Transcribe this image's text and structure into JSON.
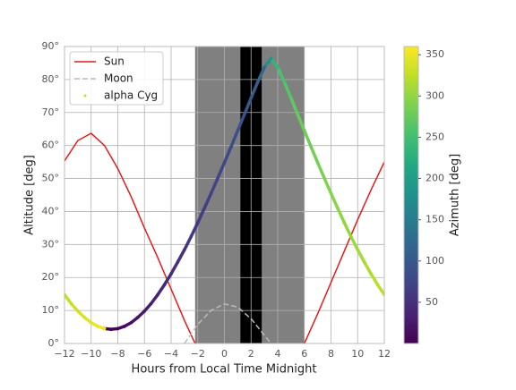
{
  "chart_data": {
    "type": "line",
    "xlabel": "Hours from Local Time Midnight",
    "ylabel": "Altitude [deg]",
    "xlim": [
      -12,
      12
    ],
    "ylim": [
      0,
      90
    ],
    "xticks": [
      {
        "value": -12,
        "label": "−12"
      },
      {
        "value": -10,
        "label": "−10"
      },
      {
        "value": -8,
        "label": "−8"
      },
      {
        "value": -6,
        "label": "−6"
      },
      {
        "value": -4,
        "label": "−4"
      },
      {
        "value": -2,
        "label": "−2"
      },
      0,
      2,
      4,
      6,
      8,
      10,
      12
    ],
    "yticks": [
      {
        "value": 0,
        "label": "0°"
      },
      {
        "value": 10,
        "label": "10°"
      },
      {
        "value": 20,
        "label": "20°"
      },
      {
        "value": 30,
        "label": "30°"
      },
      {
        "value": 40,
        "label": "40°"
      },
      {
        "value": 50,
        "label": "50°"
      },
      {
        "value": 60,
        "label": "60°"
      },
      {
        "value": 70,
        "label": "70°"
      },
      {
        "value": 80,
        "label": "80°"
      },
      {
        "value": 90,
        "label": "90°"
      }
    ],
    "grid": true,
    "legend": "upper left",
    "shading": [
      {
        "start": -2.2,
        "end": 6.0,
        "color": "#808080"
      },
      {
        "start": 1.2,
        "end": 2.8,
        "color": "#000000"
      }
    ],
    "series": [
      {
        "name": "Sun",
        "kind": "line",
        "color": "#e41a1c",
        "dash": false,
        "x": [
          -12,
          -11,
          -10,
          -9,
          -8,
          -7,
          -6,
          -5,
          -4,
          -3,
          -2.2,
          0,
          6,
          7,
          8,
          9,
          10,
          11,
          12
        ],
        "values": [
          55.3,
          61.5,
          63.7,
          60,
          53,
          44.5,
          35,
          26,
          16.5,
          7,
          0,
          null,
          0,
          9,
          18.5,
          28,
          37.5,
          46.5,
          55
        ]
      },
      {
        "name": "Moon",
        "kind": "line",
        "color": "#bbbbbb",
        "dash": true,
        "x": [
          -3,
          -2,
          -1,
          0,
          1,
          2,
          3,
          3.5
        ],
        "values": [
          0,
          5.8,
          10,
          12,
          11,
          7.5,
          2.5,
          0
        ]
      },
      {
        "name": "alpha Cyg",
        "kind": "scatter",
        "color": "#c2df23",
        "x": [
          -12,
          -11.5,
          -11,
          -10.5,
          -10,
          -9.5,
          -9,
          -8.5,
          -8,
          -7.5,
          -7,
          -6.5,
          -6,
          -5.5,
          -5,
          -4.5,
          -4,
          -3.5,
          -3,
          -2.5,
          -2,
          -1.5,
          -1,
          -0.5,
          0,
          0.5,
          1,
          1.5,
          2,
          2.5,
          3,
          3.5,
          4,
          4.5,
          5,
          5.5,
          6,
          6.5,
          7,
          7.5,
          8,
          8.5,
          9,
          9.5,
          10,
          10.5,
          11,
          11.5,
          12
        ],
        "values": [
          14.8,
          12.1,
          9.8,
          7.9,
          6.3,
          5.2,
          4.5,
          4.3,
          4.5,
          5.2,
          6.3,
          7.9,
          9.8,
          12.1,
          14.8,
          17.8,
          21.1,
          24.7,
          28.4,
          32.4,
          36.6,
          41.0,
          45.5,
          50.1,
          54.8,
          59.6,
          64.5,
          69.4,
          74.4,
          79.2,
          83.7,
          86.4,
          83.7,
          79.2,
          74.4,
          69.4,
          64.5,
          59.6,
          54.8,
          50.1,
          45.5,
          41.0,
          36.6,
          32.4,
          28.4,
          24.7,
          21.1,
          17.8,
          14.8
        ],
        "azimuth": [
          324.7,
          329.4,
          334.3,
          339.2,
          344.3,
          349.4,
          354.6,
          0,
          5.4,
          10.6,
          15.7,
          20.8,
          25.7,
          30.6,
          35.3,
          39.8,
          44.2,
          48.4,
          52.5,
          56.5,
          60.3,
          64.2,
          68.0,
          71.8,
          75.6,
          79.6,
          84.0,
          88.9,
          95.2,
          104.4,
          123.3,
          180,
          236.7,
          255.6,
          264.8,
          271.1,
          276.0,
          280.4,
          284.4,
          288.2,
          292.0,
          295.8,
          299.7,
          303.5,
          307.5,
          311.6,
          315.8,
          320.2,
          324.7
        ]
      }
    ],
    "colorbar": {
      "label": "Azimuth [deg]",
      "colormap": "viridis",
      "clim": [
        0,
        360
      ],
      "ticks": [
        50,
        100,
        150,
        200,
        250,
        300,
        350
      ]
    }
  }
}
